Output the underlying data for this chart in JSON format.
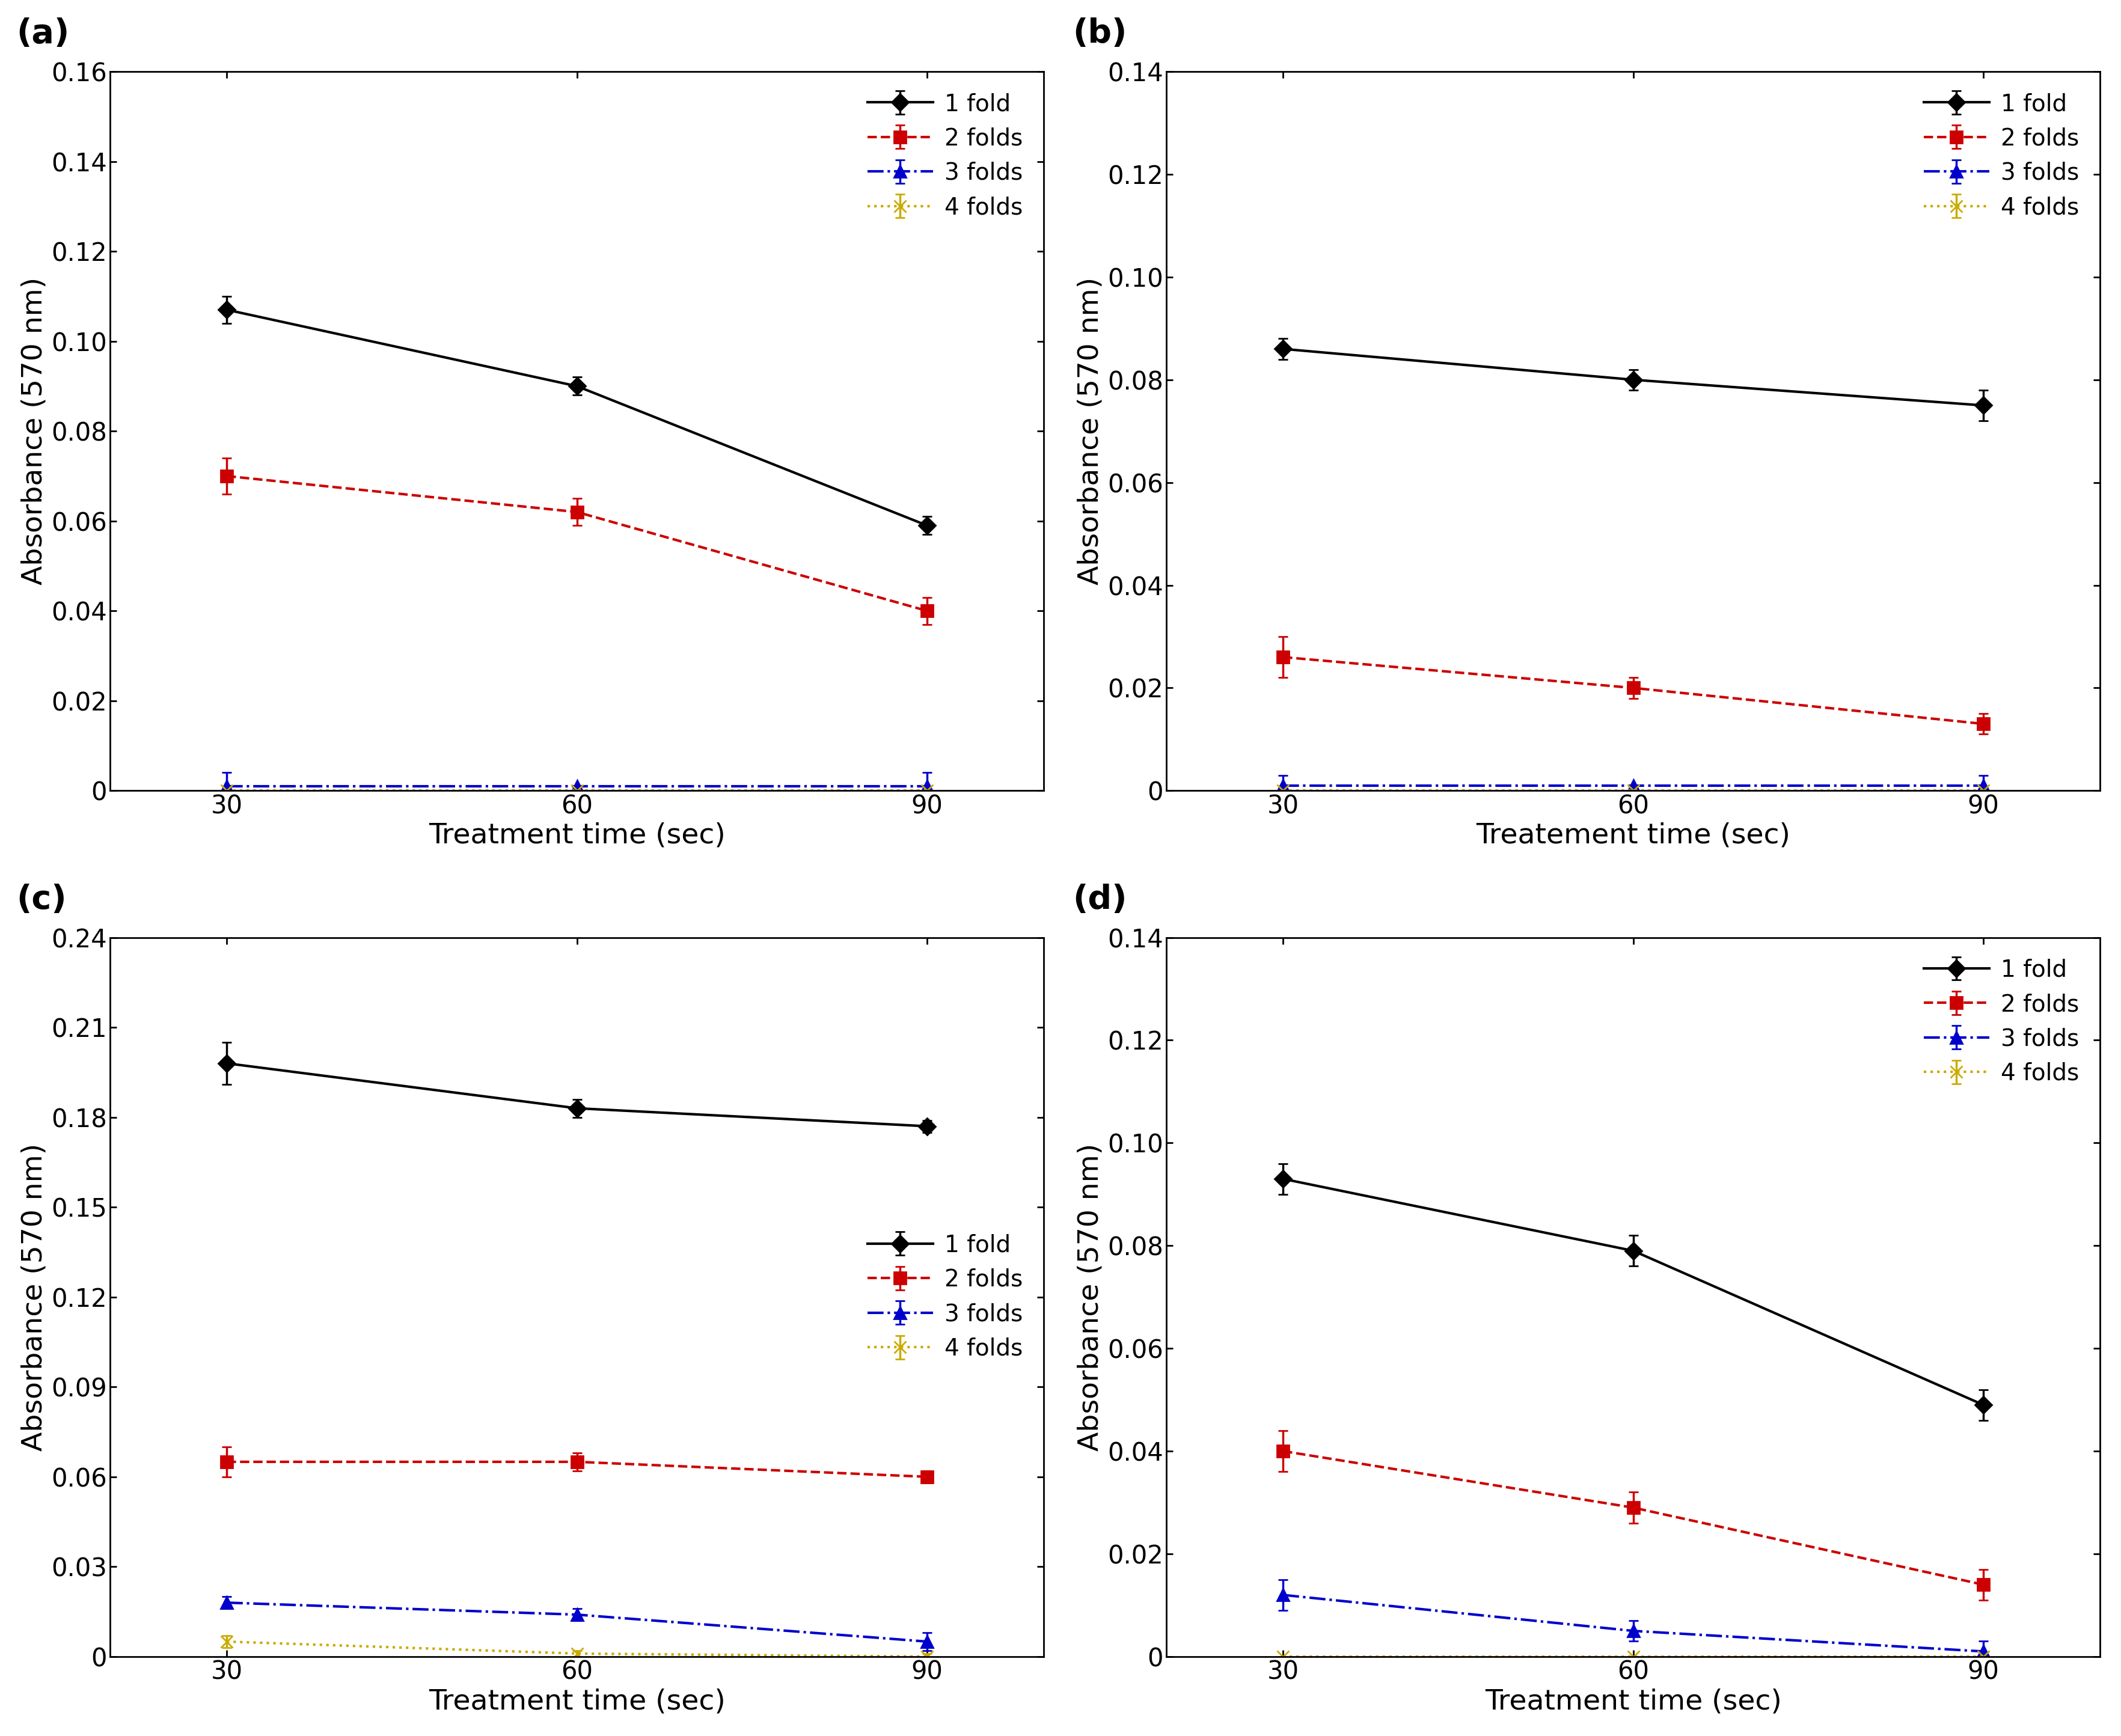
{
  "x": [
    30,
    60,
    90
  ],
  "panels": [
    {
      "label": "(a)",
      "xlabel": "Treatment time (sec)",
      "ylabel": "Absorbance (570 nm)",
      "ylim": [
        0,
        0.16
      ],
      "yticks": [
        0,
        0.02,
        0.04,
        0.06,
        0.08,
        0.1,
        0.12,
        0.14,
        0.16
      ],
      "ytick_labels": [
        "0",
        "0.02",
        "0.04",
        "0.06",
        "0.08",
        "0.10",
        "0.12",
        "0.14",
        "0.16"
      ],
      "series": [
        {
          "label": "1 fold",
          "color": "#000000",
          "linestyle": "-",
          "marker": "D",
          "y": [
            0.107,
            0.09,
            0.059
          ],
          "yerr": [
            0.003,
            0.002,
            0.002
          ]
        },
        {
          "label": "2 folds",
          "color": "#cc0000",
          "linestyle": "--",
          "marker": "s",
          "y": [
            0.07,
            0.062,
            0.04
          ],
          "yerr": [
            0.004,
            0.003,
            0.003
          ]
        },
        {
          "label": "3 folds",
          "color": "#0000cc",
          "linestyle": "-.",
          "marker": "^",
          "y": [
            0.001,
            0.001,
            0.001
          ],
          "yerr": [
            0.003,
            0.0,
            0.003
          ]
        },
        {
          "label": "4 folds",
          "color": "#ccaa00",
          "linestyle": ":",
          "marker": "x",
          "y": [
            0.0,
            0.0,
            0.0
          ],
          "yerr": [
            0.0,
            0.0,
            0.0
          ]
        }
      ],
      "legend_loc": "upper right"
    },
    {
      "label": "(b)",
      "xlabel": "Treatement time (sec)",
      "ylabel": "Absorbance (570 nm)",
      "ylim": [
        0,
        0.14
      ],
      "yticks": [
        0,
        0.02,
        0.04,
        0.06,
        0.08,
        0.1,
        0.12,
        0.14
      ],
      "ytick_labels": [
        "0",
        "0.02",
        "0.04",
        "0.06",
        "0.08",
        "0.10",
        "0.12",
        "0.14"
      ],
      "series": [
        {
          "label": "1 fold",
          "color": "#000000",
          "linestyle": "-",
          "marker": "D",
          "y": [
            0.086,
            0.08,
            0.075
          ],
          "yerr": [
            0.002,
            0.002,
            0.003
          ]
        },
        {
          "label": "2 folds",
          "color": "#cc0000",
          "linestyle": "--",
          "marker": "s",
          "y": [
            0.026,
            0.02,
            0.013
          ],
          "yerr": [
            0.004,
            0.002,
            0.002
          ]
        },
        {
          "label": "3 folds",
          "color": "#0000cc",
          "linestyle": "-.",
          "marker": "^",
          "y": [
            0.001,
            0.001,
            0.001
          ],
          "yerr": [
            0.002,
            0.0,
            0.002
          ]
        },
        {
          "label": "4 folds",
          "color": "#ccaa00",
          "linestyle": ":",
          "marker": "x",
          "y": [
            0.0,
            0.0,
            0.0
          ],
          "yerr": [
            0.0,
            0.0,
            0.0
          ]
        }
      ],
      "legend_loc": "upper right"
    },
    {
      "label": "(c)",
      "xlabel": "Treatment time (sec)",
      "ylabel": "Absorbance (570 nm)",
      "ylim": [
        0,
        0.24
      ],
      "yticks": [
        0,
        0.03,
        0.06,
        0.09,
        0.12,
        0.15,
        0.18,
        0.21,
        0.24
      ],
      "ytick_labels": [
        "0",
        "0.03",
        "0.06",
        "0.09",
        "0.12",
        "0.15",
        "0.18",
        "0.21",
        "0.24"
      ],
      "series": [
        {
          "label": "1 fold",
          "color": "#000000",
          "linestyle": "-",
          "marker": "D",
          "y": [
            0.198,
            0.183,
            0.177
          ],
          "yerr": [
            0.007,
            0.003,
            0.002
          ]
        },
        {
          "label": "2 folds",
          "color": "#cc0000",
          "linestyle": "--",
          "marker": "s",
          "y": [
            0.065,
            0.065,
            0.06
          ],
          "yerr": [
            0.005,
            0.003,
            0.002
          ]
        },
        {
          "label": "3 folds",
          "color": "#0000cc",
          "linestyle": "-.",
          "marker": "^",
          "y": [
            0.018,
            0.014,
            0.005
          ],
          "yerr": [
            0.002,
            0.002,
            0.003
          ]
        },
        {
          "label": "4 folds",
          "color": "#ccaa00",
          "linestyle": ":",
          "marker": "x",
          "y": [
            0.005,
            0.001,
            0.0
          ],
          "yerr": [
            0.002,
            0.001,
            0.001
          ]
        }
      ],
      "legend_loc": "center right"
    },
    {
      "label": "(d)",
      "xlabel": "Treatment time (sec)",
      "ylabel": "Absorbance (570 nm)",
      "ylim": [
        0,
        0.14
      ],
      "yticks": [
        0,
        0.02,
        0.04,
        0.06,
        0.08,
        0.1,
        0.12,
        0.14
      ],
      "ytick_labels": [
        "0",
        "0.02",
        "0.04",
        "0.06",
        "0.08",
        "0.10",
        "0.12",
        "0.14"
      ],
      "series": [
        {
          "label": "1 fold",
          "color": "#000000",
          "linestyle": "-",
          "marker": "D",
          "y": [
            0.093,
            0.079,
            0.049
          ],
          "yerr": [
            0.003,
            0.003,
            0.003
          ]
        },
        {
          "label": "2 folds",
          "color": "#cc0000",
          "linestyle": "--",
          "marker": "s",
          "y": [
            0.04,
            0.029,
            0.014
          ],
          "yerr": [
            0.004,
            0.003,
            0.003
          ]
        },
        {
          "label": "3 folds",
          "color": "#0000cc",
          "linestyle": "-.",
          "marker": "^",
          "y": [
            0.012,
            0.005,
            0.001
          ],
          "yerr": [
            0.003,
            0.002,
            0.002
          ]
        },
        {
          "label": "4 folds",
          "color": "#ccaa00",
          "linestyle": ":",
          "marker": "x",
          "y": [
            0.0,
            0.0,
            0.0
          ],
          "yerr": [
            0.0,
            0.0,
            0.0
          ]
        }
      ],
      "legend_loc": "upper right"
    }
  ],
  "background_color": "#ffffff",
  "label_fontsize": 34,
  "tick_fontsize": 30,
  "legend_fontsize": 28,
  "panel_label_fontsize": 40,
  "linewidth": 3.0,
  "markersize": 14,
  "capsize": 6,
  "elinewidth": 2.5
}
